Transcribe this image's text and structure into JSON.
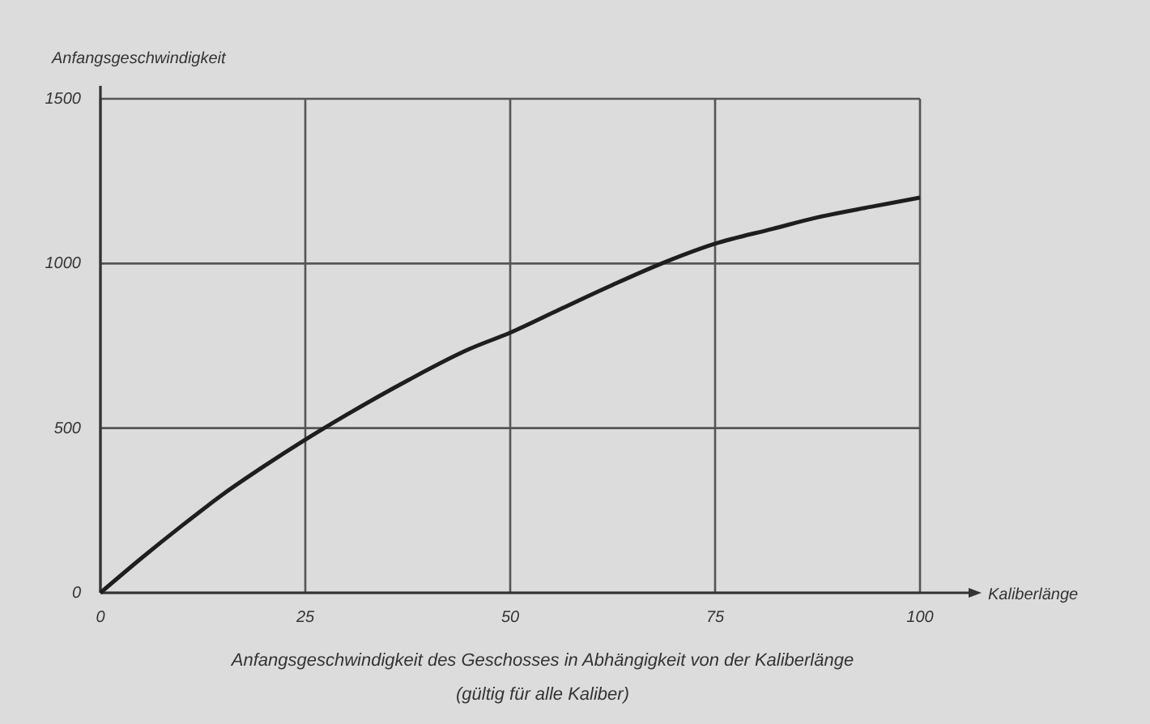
{
  "chart_data": {
    "type": "line",
    "title": "Anfangsgeschwindigkeit des Geschosses in Abhängigkeit von der Kaliberlänge",
    "subtitle": "(gültig für alle Kaliber)",
    "xlabel": "Kaliberlänge",
    "ylabel": "Anfangsgeschwindigkeit",
    "x": [
      0,
      5,
      10,
      15,
      20,
      25,
      30,
      37.5,
      45,
      50,
      56,
      62.5,
      68,
      75,
      82,
      87.5,
      94,
      100
    ],
    "series": [
      {
        "color": "#1e1e1e",
        "values": [
          0,
          105,
          205,
          300,
          385,
          465,
          540,
          645,
          740,
          790,
          860,
          935,
          995,
          1060,
          1105,
          1140,
          1172,
          1200
        ]
      }
    ],
    "xlim": [
      0,
      100
    ],
    "xticks": [
      0,
      25,
      50,
      75,
      100
    ],
    "ylim": [
      0,
      1500
    ],
    "yticks": [
      0,
      500,
      1000,
      1500
    ],
    "grid": true,
    "marker": "none",
    "line_style": "solid"
  }
}
